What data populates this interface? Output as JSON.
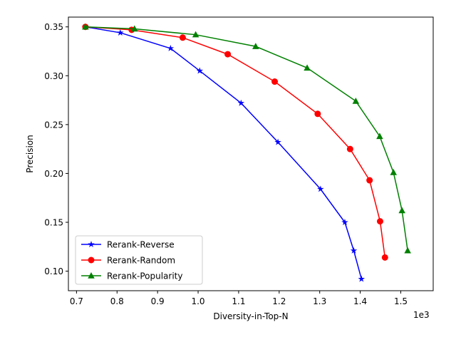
{
  "chart_data": {
    "type": "line",
    "title": "",
    "xlabel": "Diversity-in-Top-N",
    "ylabel": "Precision",
    "x_offset_label": "1e3",
    "xlim": [
      0.68,
      1.58
    ],
    "ylim": [
      0.08,
      0.36
    ],
    "xticks": [
      0.7,
      0.8,
      0.9,
      1.0,
      1.1,
      1.2,
      1.3,
      1.4,
      1.5
    ],
    "xtick_labels": [
      "0.7",
      "0.8",
      "0.9",
      "1.0",
      "1.1",
      "1.2",
      "1.3",
      "1.4",
      "1.5"
    ],
    "yticks": [
      0.1,
      0.15,
      0.2,
      0.25,
      0.3,
      0.35
    ],
    "ytick_labels": [
      "0.10",
      "0.15",
      "0.20",
      "0.25",
      "0.30",
      "0.35"
    ],
    "grid": false,
    "legend_position": "lower-left",
    "series": [
      {
        "name": "Rerank-Reverse",
        "color": "#0000ff",
        "marker": "star",
        "x": [
          0.722,
          0.808,
          0.932,
          1.004,
          1.106,
          1.197,
          1.302,
          1.362,
          1.384,
          1.403
        ],
        "y": [
          0.35,
          0.344,
          0.328,
          0.305,
          0.272,
          0.232,
          0.184,
          0.15,
          0.121,
          0.092
        ]
      },
      {
        "name": "Rerank-Random",
        "color": "#ff0000",
        "marker": "circle",
        "x": [
          0.722,
          0.836,
          0.962,
          1.073,
          1.189,
          1.295,
          1.375,
          1.423,
          1.449,
          1.461
        ],
        "y": [
          0.35,
          0.347,
          0.339,
          0.322,
          0.294,
          0.261,
          0.225,
          0.193,
          0.151,
          0.114
        ]
      },
      {
        "name": "Rerank-Popularity",
        "color": "#008000",
        "marker": "triangle",
        "x": [
          0.722,
          0.843,
          0.994,
          1.142,
          1.269,
          1.389,
          1.448,
          1.482,
          1.503,
          1.517
        ],
        "y": [
          0.35,
          0.348,
          0.342,
          0.33,
          0.308,
          0.274,
          0.238,
          0.201,
          0.162,
          0.121
        ]
      }
    ]
  }
}
